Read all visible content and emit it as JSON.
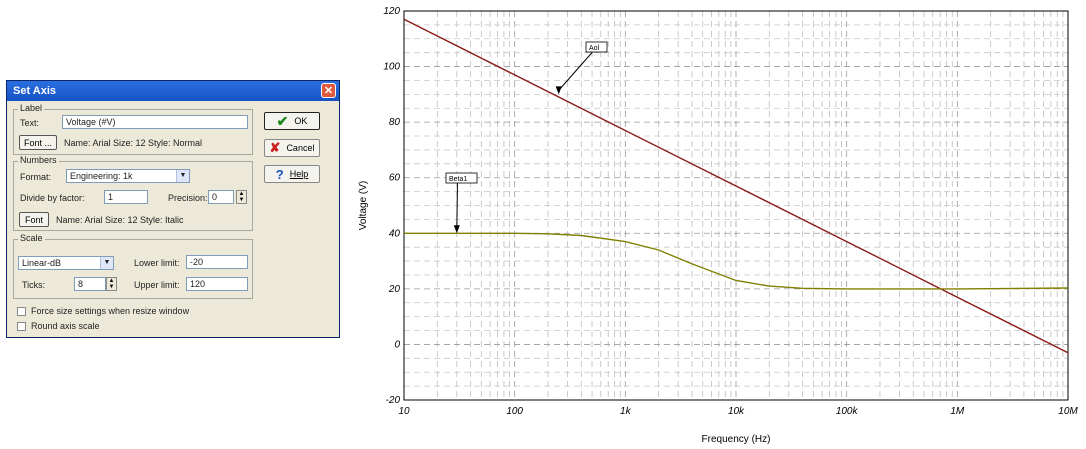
{
  "dialog": {
    "title": "Set Axis",
    "close_glyph": "✕",
    "label_group": {
      "title": "Label",
      "text_label": "Text:",
      "text_value": "Voltage (#V)",
      "font_button": "Font ...",
      "font_desc": "Name: Arial Size: 12 Style: Normal"
    },
    "numbers_group": {
      "title": "Numbers",
      "format_label": "Format:",
      "format_value": "Engineering: 1k",
      "divide_label": "Divide by factor:",
      "divide_value": "1",
      "precision_label": "Precision:",
      "precision_value": "0",
      "font_button": "Font",
      "font_desc": "Name: Arial Size: 12 Style: Italic"
    },
    "scale_group": {
      "title": "Scale",
      "scale_value": "Linear-dB",
      "lower_label": "Lower limit:",
      "lower_value": "-20",
      "ticks_label": "Ticks:",
      "ticks_value": "8",
      "upper_label": "Upper limit:",
      "upper_value": "120"
    },
    "force_size_label": "Force size settings when resize window",
    "round_axis_label": "Round axis scale",
    "ok_button": "OK",
    "cancel_button": "Cancel",
    "help_button": "Help",
    "ok_icon": "check-icon",
    "cancel_icon": "x-icon",
    "help_icon": "question-icon"
  },
  "chart_data": {
    "type": "line",
    "xlabel": "Frequency (Hz)",
    "ylabel": "Voltage (V)",
    "x_scale": "log",
    "xlim": [
      10,
      10000000
    ],
    "ylim": [
      -20,
      120
    ],
    "x_ticks": [
      10,
      100,
      1000,
      10000,
      100000,
      1000000,
      10000000
    ],
    "x_tick_labels": [
      "10",
      "100",
      "1k",
      "10k",
      "100k",
      "1M",
      "10M"
    ],
    "y_ticks": [
      -20,
      0,
      20,
      40,
      60,
      80,
      100,
      120
    ],
    "y_tick_labels": [
      "-20",
      "0",
      "20",
      "40",
      "60",
      "80",
      "100",
      "120"
    ],
    "grid": true,
    "series": [
      {
        "name": "Aol",
        "color": "#8b1a1a",
        "x": [
          10,
          100,
          1000,
          10000,
          100000,
          1000000,
          10000000
        ],
        "y": [
          117,
          97,
          77,
          57,
          37,
          17,
          -3
        ]
      },
      {
        "name": "Beta1",
        "color": "#808000",
        "x": [
          10,
          100,
          200,
          400,
          1000,
          2000,
          4000,
          10000,
          20000,
          40000,
          100000,
          1000000,
          10000000
        ],
        "y": [
          40,
          40,
          39.8,
          39.2,
          37,
          34,
          29,
          23,
          21,
          20.2,
          20,
          20,
          20.3
        ]
      }
    ],
    "annotations": [
      {
        "text": "Aol",
        "x": 250,
        "y": 90
      },
      {
        "text": "Beta1",
        "x": 30,
        "y": 40
      }
    ]
  }
}
